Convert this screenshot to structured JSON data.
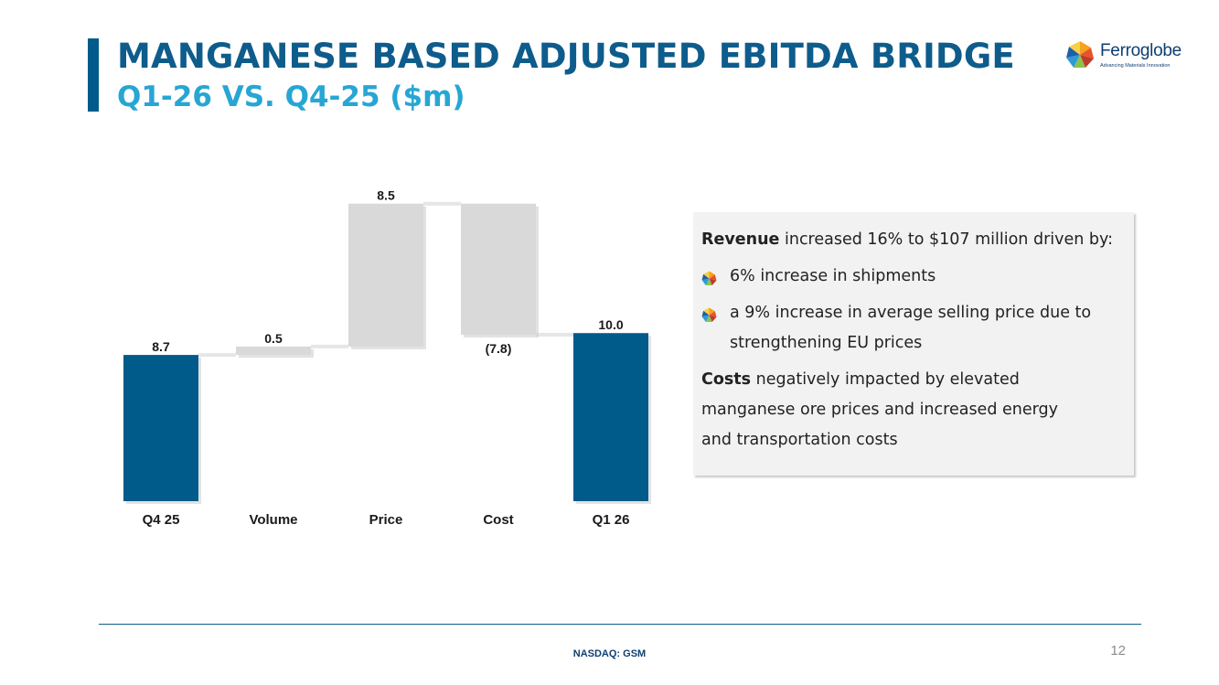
{
  "slide": {
    "title": "MANGANESE BASED ADJUSTED EBITDA BRIDGE",
    "subtitle": "Q1-26 VS. Q4-25 ($m)"
  },
  "logo": {
    "name": "Ferroglobe",
    "tagline": "Advancing Materials Innovation"
  },
  "chart_data": {
    "type": "bar",
    "variant": "waterfall",
    "categories": [
      "Q4 25",
      "Volume",
      "Price",
      "Cost",
      "Q1 26"
    ],
    "values": [
      8.7,
      0.5,
      8.5,
      -7.8,
      10.0
    ],
    "value_labels": [
      "8.7",
      "0.5",
      "8.5",
      "(7.8)",
      "10.0"
    ],
    "bar_kinds": [
      "total",
      "delta",
      "delta",
      "delta",
      "total"
    ],
    "ylim": [
      0,
      18.5
    ],
    "grid": false,
    "legend": "none",
    "colors": {
      "total": "#005b8a",
      "delta": "#d9d9d9",
      "connector": "#e6e6e6"
    }
  },
  "info_box": {
    "revenue": {
      "bold": "Revenue",
      "rest": " increased 16% to $107 million driven by:"
    },
    "bullets": [
      {
        "lines": [
          "6% increase in shipments"
        ]
      },
      {
        "lines": [
          "a 9% increase in average selling price due to",
          "strengthening EU prices"
        ]
      }
    ],
    "costs": {
      "bold": "Costs",
      "lines": [
        " negatively impacted by elevated",
        "manganese ore prices and increased energy",
        "and transportation costs"
      ]
    }
  },
  "footer": {
    "ticker": "NASDAQ: GSM",
    "page": "12"
  }
}
